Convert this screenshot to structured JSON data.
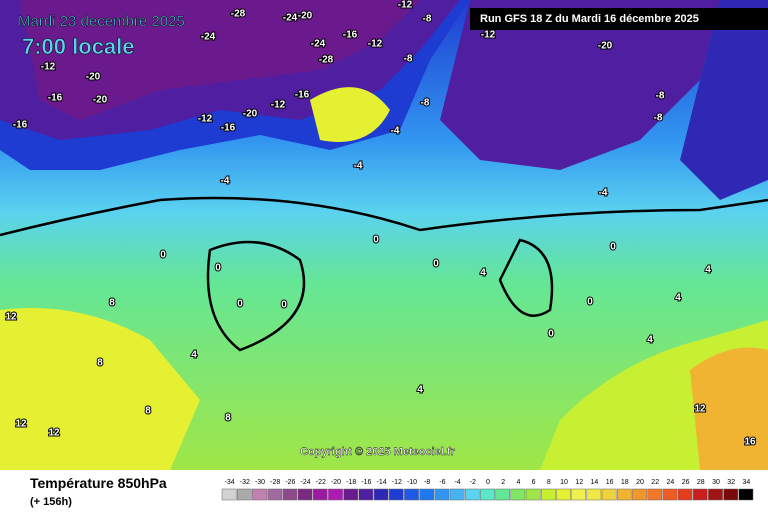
{
  "map": {
    "date": "Mardi 23 decembre 2025",
    "time": "7:00 locale",
    "run": "Run GFS 18 Z du Mardi 16 décembre 2025",
    "copyright": "Copyright © 2025 Meteociel.fr"
  },
  "legend": {
    "title": "Température 850hPa",
    "lead": "(+ 156h)",
    "levels": [
      -34,
      -32,
      -30,
      -28,
      -26,
      -24,
      -22,
      -20,
      -18,
      -16,
      -14,
      -12,
      -10,
      -8,
      -6,
      -4,
      -2,
      0,
      2,
      4,
      6,
      8,
      10,
      12,
      14,
      16,
      18,
      20,
      22,
      24,
      26,
      28,
      30,
      32,
      34
    ],
    "colors": [
      "#d2d2d2",
      "#aaaaaa",
      "#c080b0",
      "#a06aa0",
      "#8c4a8c",
      "#7a2a82",
      "#9a1aa0",
      "#b01ab4",
      "#6a1a8c",
      "#501ea0",
      "#2e28b4",
      "#1e3cd2",
      "#1e5ae6",
      "#1e78f0",
      "#3296f0",
      "#46b4f0",
      "#5ad2f0",
      "#5ae6c8",
      "#64e696",
      "#82e664",
      "#a0e646",
      "#c8f032",
      "#e6f032",
      "#f0f050",
      "#f0e646",
      "#f0d23c",
      "#f0b432",
      "#f0962d",
      "#f07828",
      "#f05a23",
      "#e63c1e",
      "#c81e1e",
      "#a01414",
      "#780a0a",
      "#000000"
    ]
  },
  "contour_labels": [
    -24,
    -28,
    -24,
    -20,
    -12,
    -8,
    -12,
    -20,
    -8,
    -8,
    -16,
    -20,
    -16,
    -12,
    -20,
    -16,
    -12,
    -16,
    -24,
    -28,
    -16,
    -12,
    -8,
    -4,
    -4,
    -4,
    -4,
    0,
    0,
    0,
    0,
    0,
    0,
    0,
    0,
    4,
    4,
    4,
    4,
    8,
    8,
    8,
    8,
    12,
    12,
    12,
    12,
    16,
    4,
    -12,
    -20,
    -8,
    0,
    4
  ]
}
